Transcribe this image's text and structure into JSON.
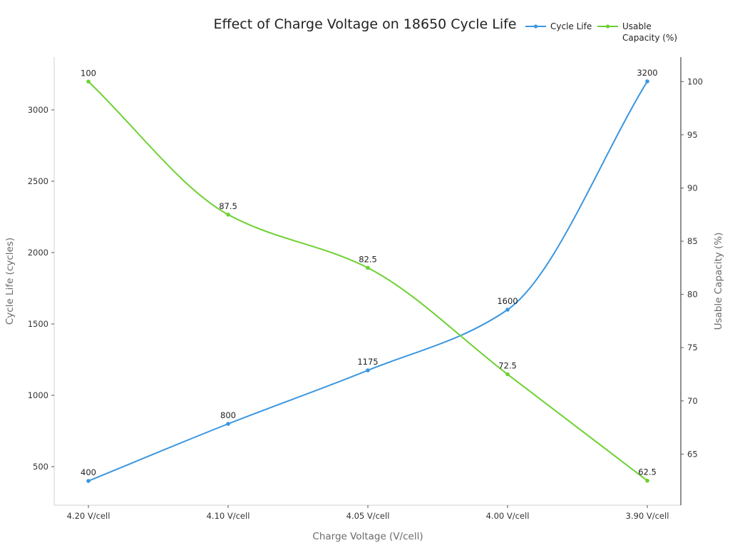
{
  "chart_data": {
    "type": "line",
    "title": "Effect of Charge Voltage on 18650 Cycle Life",
    "xlabel": "Charge Voltage (V/cell)",
    "ylabel": "Cycle Life (cycles)",
    "y2label": "Usable Capacity (%)",
    "categories": [
      "4.20 V/cell",
      "4.10 V/cell",
      "4.05 V/cell",
      "4.00 V/cell",
      "3.90 V/cell"
    ],
    "ylim": [
      230,
      3370
    ],
    "y2lim": [
      60.2,
      102.3
    ],
    "yticks": [
      500,
      1000,
      1500,
      2000,
      2500,
      3000
    ],
    "y2ticks": [
      65,
      70,
      75,
      80,
      85,
      90,
      95,
      100
    ],
    "grid": false,
    "legend_position": "top-right",
    "series": [
      {
        "name": "Cycle Life",
        "axis": "left",
        "color": "#3a96e0",
        "values": [
          400,
          800,
          1175,
          1600,
          3200
        ],
        "labels": [
          "400",
          "800",
          "1175",
          "1600",
          "3200"
        ]
      },
      {
        "name": "Usable Capacity (%)",
        "legend_lines": [
          "Usable",
          "Capacity (%)"
        ],
        "axis": "right",
        "color": "#6dd131",
        "values": [
          100,
          87.5,
          82.5,
          72.5,
          62.5
        ],
        "labels": [
          "100",
          "87.5",
          "82.5",
          "72.5",
          "62.5"
        ]
      }
    ]
  }
}
